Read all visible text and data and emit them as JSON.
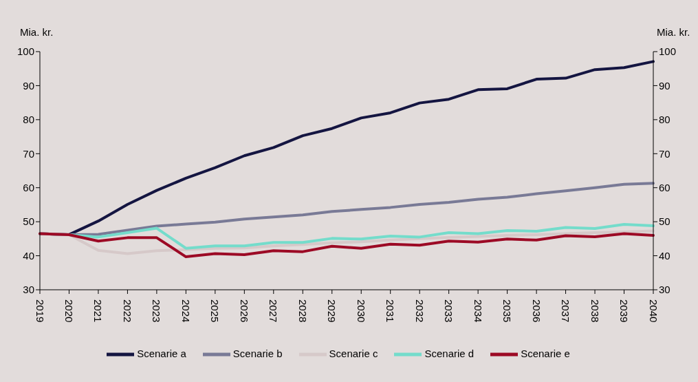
{
  "chart_data": {
    "type": "line",
    "ylabel": "Mia. kr.",
    "y2label": "Mia. kr.",
    "categories": [
      "2019",
      "2020",
      "2021",
      "2022",
      "2023",
      "2024",
      "2025",
      "2026",
      "2027",
      "2028",
      "2029",
      "2030",
      "2031",
      "2032",
      "2033",
      "2034",
      "2035",
      "2036",
      "2037",
      "2038",
      "2039",
      "2040"
    ],
    "series": [
      {
        "name": "Scenarie a",
        "color": "#141541",
        "values": [
          46.5,
          46.2,
          50.2,
          55.1,
          59.2,
          62.8,
          65.9,
          69.4,
          71.8,
          75.3,
          77.4,
          80.5,
          82.0,
          84.9,
          86.0,
          88.8,
          89.1,
          91.9,
          92.2,
          94.7,
          95.3,
          97.1
        ]
      },
      {
        "name": "Scenarie b",
        "color": "#797a96",
        "values": [
          46.5,
          46.2,
          46.3,
          47.5,
          48.7,
          49.3,
          49.9,
          50.8,
          51.4,
          52.0,
          53.0,
          53.6,
          54.2,
          55.1,
          55.7,
          56.6,
          57.2,
          58.2,
          59.1,
          60.0,
          61.0,
          61.3
        ]
      },
      {
        "name": "Scenarie c",
        "color": "#d6c9c9",
        "values": [
          46.5,
          46.2,
          41.6,
          40.6,
          41.5,
          41.8,
          42.2,
          42.3,
          42.9,
          43.3,
          43.8,
          44.1,
          44.6,
          45.0,
          45.4,
          45.7,
          46.0,
          46.2,
          46.5,
          46.8,
          47.0,
          47.3
        ]
      },
      {
        "name": "Scenarie d",
        "color": "#74dccb",
        "values": [
          null,
          46.2,
          45.5,
          46.8,
          48.1,
          42.2,
          42.9,
          42.9,
          43.9,
          43.9,
          45.1,
          44.9,
          45.8,
          45.5,
          46.8,
          46.5,
          47.4,
          47.2,
          48.3,
          48.0,
          49.2,
          48.8
        ]
      },
      {
        "name": "Scenarie e",
        "color": "#9c0a25",
        "values": [
          46.5,
          46.2,
          44.3,
          45.3,
          45.3,
          39.7,
          40.6,
          40.3,
          41.5,
          41.2,
          42.8,
          42.2,
          43.4,
          43.1,
          44.3,
          44.0,
          44.9,
          44.6,
          45.9,
          45.6,
          46.5,
          46.0
        ]
      }
    ],
    "ylim": [
      30,
      100
    ],
    "yticks": [
      30,
      40,
      50,
      60,
      70,
      80,
      90,
      100
    ],
    "y2lim": [
      30,
      100
    ],
    "y2ticks": [
      30,
      40,
      50,
      60,
      70,
      80,
      90,
      100
    ],
    "grid": false,
    "legend": "bottom",
    "marker": "none",
    "line_style": "solid"
  }
}
